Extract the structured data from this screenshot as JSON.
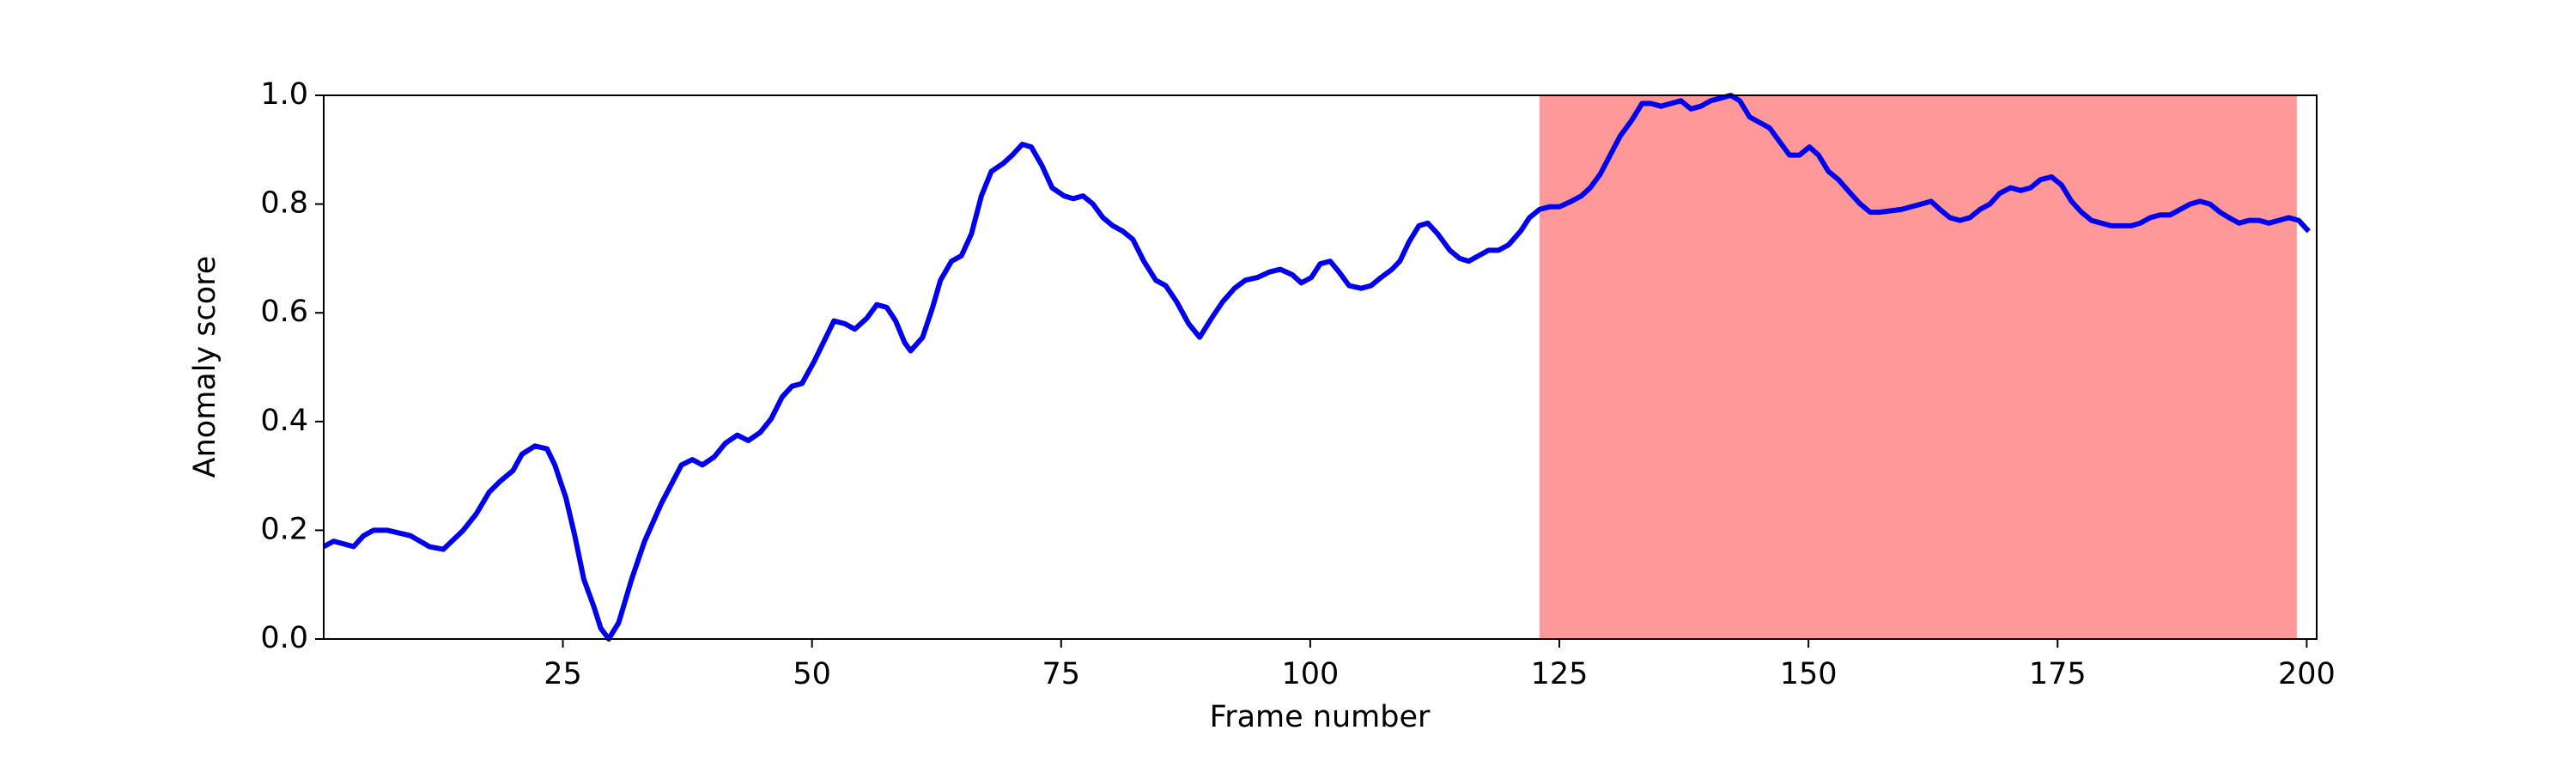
{
  "chart_data": {
    "type": "line",
    "xlabel": "Frame number",
    "ylabel": "Anomaly score",
    "xlim": [
      1,
      201
    ],
    "ylim": [
      0,
      1
    ],
    "xticks": [
      25,
      50,
      75,
      100,
      125,
      150,
      175,
      200
    ],
    "yticks": [
      {
        "value": 0,
        "label": "0.0"
      },
      0.2,
      0.4,
      0.6,
      0.8,
      {
        "value": 1,
        "label": "1.0"
      }
    ],
    "highlight": {
      "start": 123,
      "end": 199,
      "color": "#ff9999"
    },
    "series": [
      {
        "color": "#0000ee",
        "x": [
          1,
          2,
          4,
          5,
          6,
          7.4,
          9.7,
          11.6,
          13,
          15,
          16.3,
          17.6,
          18.7,
          20,
          20.9,
          22.2,
          23.4,
          24.2,
          25.3,
          26.2,
          27.1,
          28.1,
          28.8,
          29.6,
          30.6,
          31.9,
          33.2,
          34.9,
          36.9,
          38,
          39,
          40.2,
          41.3,
          42.5,
          43.6,
          44.8,
          45.9,
          47,
          48,
          49,
          50.2,
          51.4,
          52.2,
          53.3,
          54.3,
          55.5,
          56.5,
          57.5,
          58.4,
          59.3,
          59.9,
          61.1,
          62.1,
          62.9,
          64,
          65,
          66,
          67,
          68,
          69.2,
          70.1,
          71.1,
          72,
          73.1,
          74.1,
          75.3,
          76.2,
          77.2,
          78.2,
          79.2,
          80.2,
          81.2,
          82.2,
          83.3,
          84.5,
          85.5,
          86.6,
          87.8,
          88.9,
          90.1,
          91.2,
          92.4,
          93.5,
          94.7,
          95.9,
          97,
          98.2,
          99.1,
          100.1,
          101,
          102,
          102.9,
          103.9,
          105.1,
          106.1,
          107.1,
          108.2,
          109,
          109.9,
          110.9,
          111.8,
          112.8,
          114,
          115,
          115.9,
          116.9,
          117.9,
          118.9,
          119.9,
          121.1,
          122,
          123,
          124,
          125,
          126.2,
          127.2,
          128.1,
          129.1,
          130.1,
          131.1,
          132.3,
          133.3,
          134.2,
          135.2,
          136.2,
          137.2,
          138.2,
          139.2,
          140.2,
          141.2,
          142.2,
          143.1,
          144.1,
          145.1,
          146.1,
          147.3,
          148.1,
          149.1,
          150.1,
          151,
          152,
          153,
          154.2,
          155.2,
          156.2,
          157.1,
          159.3,
          161.3,
          162.3,
          163.2,
          164.2,
          165.2,
          166.2,
          167.2,
          168.2,
          169.2,
          170.3,
          171.3,
          172.3,
          173.3,
          174.4,
          175.4,
          176.4,
          177.4,
          178.4,
          179.4,
          180.4,
          181.4,
          182.4,
          183.3,
          184.3,
          185.3,
          186.3,
          187.3,
          188.3,
          189.3,
          190.3,
          191.3,
          192.2,
          193.2,
          194.2,
          195.2,
          196.2,
          197.2,
          198.2,
          199.2,
          200.2
        ],
        "values": [
          0.17,
          0.18,
          0.17,
          0.19,
          0.2,
          0.2,
          0.19,
          0.17,
          0.165,
          0.2,
          0.23,
          0.27,
          0.29,
          0.31,
          0.34,
          0.355,
          0.35,
          0.32,
          0.26,
          0.19,
          0.11,
          0.06,
          0.02,
          0.0,
          0.03,
          0.11,
          0.18,
          0.25,
          0.32,
          0.33,
          0.32,
          0.335,
          0.36,
          0.375,
          0.365,
          0.38,
          0.405,
          0.445,
          0.465,
          0.47,
          0.51,
          0.555,
          0.585,
          0.58,
          0.57,
          0.59,
          0.615,
          0.61,
          0.585,
          0.545,
          0.53,
          0.555,
          0.61,
          0.66,
          0.695,
          0.705,
          0.745,
          0.815,
          0.86,
          0.875,
          0.89,
          0.91,
          0.905,
          0.87,
          0.83,
          0.815,
          0.81,
          0.815,
          0.8,
          0.775,
          0.76,
          0.75,
          0.735,
          0.695,
          0.66,
          0.65,
          0.62,
          0.58,
          0.555,
          0.59,
          0.62,
          0.645,
          0.66,
          0.665,
          0.675,
          0.68,
          0.67,
          0.655,
          0.665,
          0.69,
          0.695,
          0.675,
          0.65,
          0.645,
          0.65,
          0.665,
          0.68,
          0.695,
          0.73,
          0.76,
          0.765,
          0.745,
          0.715,
          0.7,
          0.695,
          0.705,
          0.715,
          0.715,
          0.725,
          0.75,
          0.775,
          0.79,
          0.795,
          0.795,
          0.805,
          0.815,
          0.83,
          0.855,
          0.89,
          0.925,
          0.955,
          0.985,
          0.985,
          0.98,
          0.985,
          0.99,
          0.975,
          0.98,
          0.99,
          0.995,
          1.0,
          0.99,
          0.96,
          0.95,
          0.94,
          0.91,
          0.89,
          0.89,
          0.905,
          0.89,
          0.86,
          0.845,
          0.82,
          0.8,
          0.785,
          0.785,
          0.79,
          0.8,
          0.805,
          0.79,
          0.775,
          0.77,
          0.775,
          0.79,
          0.8,
          0.82,
          0.83,
          0.825,
          0.83,
          0.845,
          0.85,
          0.835,
          0.805,
          0.785,
          0.77,
          0.765,
          0.76,
          0.76,
          0.76,
          0.765,
          0.775,
          0.78,
          0.78,
          0.79,
          0.8,
          0.805,
          0.8,
          0.785,
          0.775,
          0.765,
          0.77,
          0.77,
          0.765,
          0.77,
          0.775,
          0.77,
          0.75
        ]
      }
    ]
  }
}
